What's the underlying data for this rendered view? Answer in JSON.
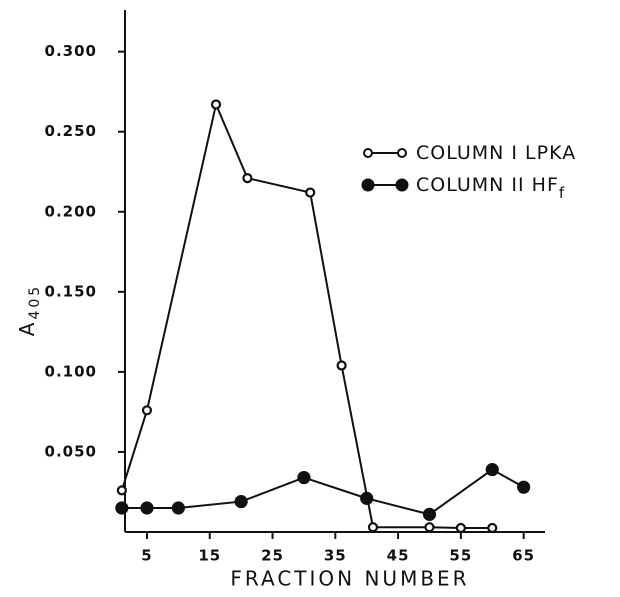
{
  "chart_data": {
    "type": "line",
    "x_label": "FRACTION NUMBER",
    "y_label": "A",
    "y_label_sub": "405",
    "xlim": [
      1.5,
      68.4
    ],
    "xticks": [
      5,
      15,
      25,
      35,
      45,
      55,
      65
    ],
    "ylim": [
      0,
      0.326
    ],
    "yticks": [
      {
        "value": 0.05,
        "label": "0.050"
      },
      {
        "value": 0.1,
        "label": "0.100"
      },
      {
        "value": 0.15,
        "label": "0.150"
      },
      {
        "value": 0.2,
        "label": "0.200"
      },
      {
        "value": 0.25,
        "label": "0.250"
      },
      {
        "value": 0.3,
        "label": "0.300"
      }
    ],
    "grid": false,
    "legend_position": "upper-right",
    "series": [
      {
        "name": "COLUMN I LPKA",
        "color": "#111111",
        "marker": "open-circle",
        "x": [
          1,
          5,
          16,
          21,
          31,
          36,
          41,
          50,
          55,
          60
        ],
        "values": [
          0.026,
          0.076,
          0.267,
          0.221,
          0.212,
          0.104,
          0.003,
          0.003,
          0.0025,
          0.0025
        ]
      },
      {
        "name": "COLUMN II HF",
        "name_sub": "f",
        "color": "#111111",
        "marker": "filled-circle",
        "x": [
          1,
          5,
          10,
          20,
          30,
          40,
          50,
          60,
          65
        ],
        "values": [
          0.015,
          0.015,
          0.015,
          0.019,
          0.034,
          0.021,
          0.011,
          0.039,
          0.028
        ]
      }
    ]
  }
}
